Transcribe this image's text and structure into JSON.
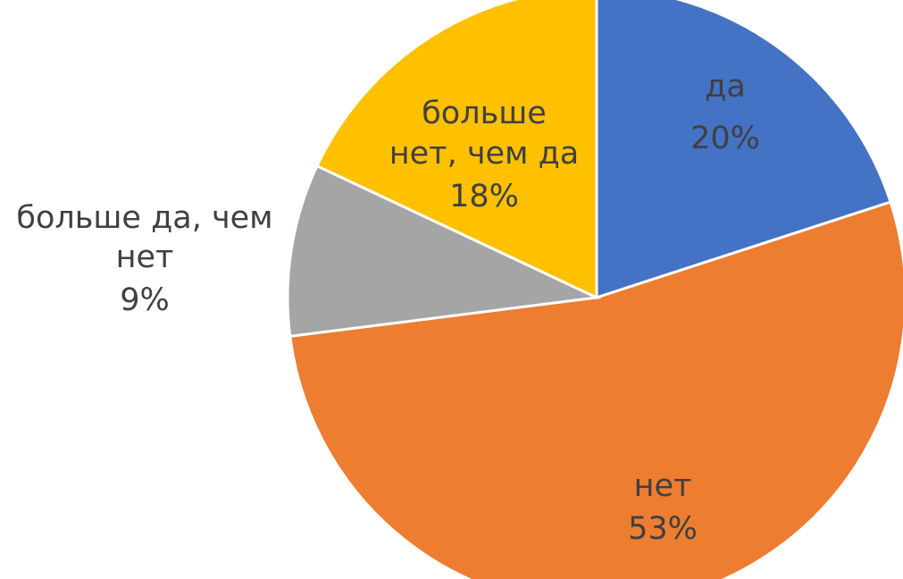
{
  "chart_data": {
    "type": "pie",
    "start_angle_deg": 0,
    "direction": "clockwise",
    "slices": [
      {
        "label": "да",
        "value": 20,
        "value_label": "20%",
        "color": "#4472C4"
      },
      {
        "label": "нет",
        "value": 53,
        "value_label": "53%",
        "color": "#ED7D31"
      },
      {
        "label": "больше да, чем нет",
        "value": 9,
        "value_label": "9%",
        "color": "#A5A5A5"
      },
      {
        "label": "больше нет, чем да",
        "value": 18,
        "value_label": "18%",
        "color": "#FFC000"
      }
    ]
  }
}
